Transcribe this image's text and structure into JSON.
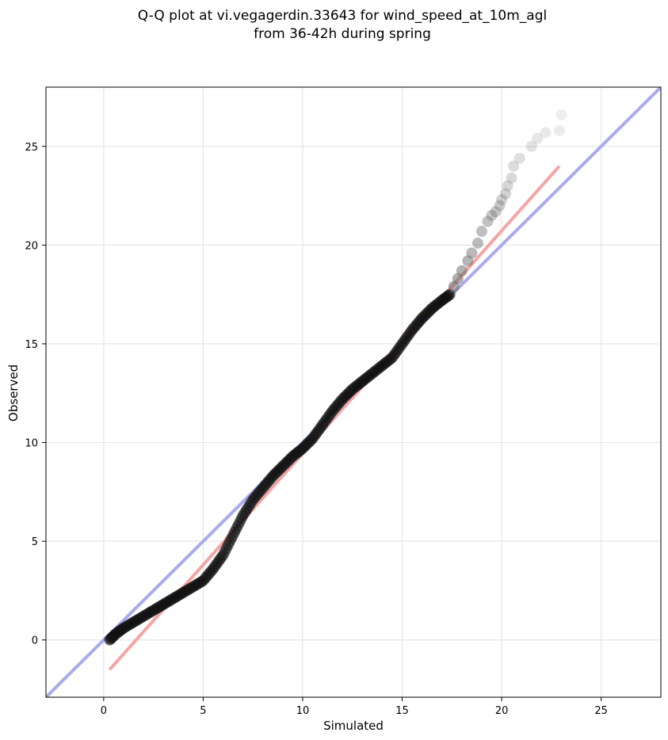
{
  "chart_data": {
    "type": "scatter",
    "title_lines": [
      "Q-Q plot at vi.vegagerdin.33643 for wind_speed_at_10m_agl",
      "from 36-42h during spring"
    ],
    "xlabel": "Simulated",
    "ylabel": "Observed",
    "xlim": [
      -2.9,
      28
    ],
    "ylim": [
      -2.9,
      28
    ],
    "xticks": [
      0,
      5,
      10,
      15,
      20,
      25
    ],
    "yticks": [
      0,
      5,
      10,
      15,
      20,
      25
    ],
    "grid": true,
    "reference_line": {
      "from": [
        -2.9,
        -2.9
      ],
      "to": [
        28,
        28
      ],
      "color": "#aaaaee"
    },
    "fit_line": {
      "from": [
        0.3,
        -1.5
      ],
      "to": [
        22.9,
        24.0
      ],
      "color": "#f4a4a4"
    },
    "quantile_curve": {
      "x": [
        0.3,
        0.6,
        1.0,
        1.5,
        2.0,
        2.5,
        3.0,
        3.5,
        4.0,
        4.5,
        5.0,
        5.5,
        6.0,
        6.5,
        7.0,
        7.5,
        8.0,
        8.5,
        9.0,
        9.5,
        10.0,
        10.5,
        11.0,
        11.5,
        12.0,
        12.5,
        13.0,
        13.5,
        14.0,
        14.5,
        15.0,
        15.5,
        16.0,
        16.5,
        17.0,
        17.4
      ],
      "y": [
        0.0,
        0.3,
        0.6,
        0.9,
        1.2,
        1.5,
        1.8,
        2.1,
        2.4,
        2.7,
        3.0,
        3.6,
        4.3,
        5.3,
        6.3,
        7.1,
        7.7,
        8.3,
        8.8,
        9.3,
        9.7,
        10.2,
        10.9,
        11.6,
        12.2,
        12.7,
        13.1,
        13.5,
        13.9,
        14.3,
        15.0,
        15.7,
        16.3,
        16.8,
        17.2,
        17.5
      ],
      "color": "#111111"
    },
    "upper_tail": {
      "x": [
        17.6,
        17.8,
        18.0,
        18.3,
        18.5,
        18.8,
        19.0,
        19.3,
        19.5,
        19.7,
        19.9,
        20.0,
        20.2,
        20.3,
        20.5,
        20.6,
        20.9,
        21.5,
        21.8,
        22.2,
        22.9,
        23.0
      ],
      "y": [
        17.9,
        18.3,
        18.7,
        19.2,
        19.6,
        20.1,
        20.7,
        21.2,
        21.5,
        21.7,
        22.0,
        22.3,
        22.6,
        23.0,
        23.4,
        24.0,
        24.4,
        25.0,
        25.4,
        25.7,
        25.8,
        26.6
      ],
      "color": "#666666"
    }
  }
}
